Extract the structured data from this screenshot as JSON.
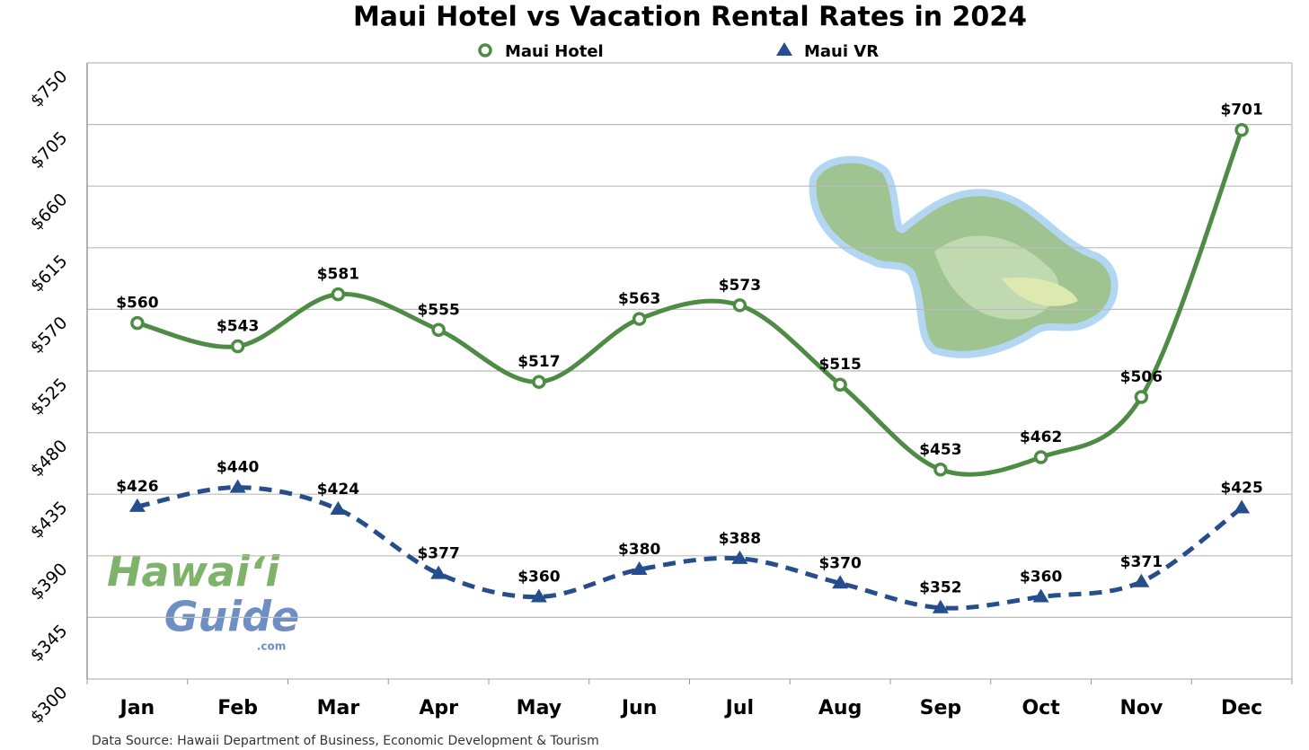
{
  "chart_data": {
    "type": "line",
    "title": "Maui Hotel vs Vacation Rental Rates in 2024",
    "categories": [
      "Jan",
      "Feb",
      "Mar",
      "Apr",
      "May",
      "Jun",
      "Jul",
      "Aug",
      "Sep",
      "Oct",
      "Nov",
      "Dec"
    ],
    "series": [
      {
        "name": "Maui Hotel",
        "color": "#4e8c45",
        "marker": "circle",
        "dashed": false,
        "values": [
          560,
          543,
          581,
          555,
          517,
          563,
          573,
          515,
          453,
          462,
          506,
          701
        ],
        "value_labels": [
          "$560",
          "$543",
          "$581",
          "$555",
          "$517",
          "$563",
          "$573",
          "$515",
          "$453",
          "$462",
          "$506",
          "$701"
        ]
      },
      {
        "name": "Maui VR",
        "color": "#264d8c",
        "marker": "triangle",
        "dashed": true,
        "values": [
          426,
          440,
          424,
          377,
          360,
          380,
          388,
          370,
          352,
          360,
          371,
          425
        ],
        "value_labels": [
          "$426",
          "$440",
          "$424",
          "$377",
          "$360",
          "$380",
          "$388",
          "$370",
          "$352",
          "$360",
          "$371",
          "$425"
        ]
      }
    ],
    "ylim": [
      300,
      750
    ],
    "yticks": [
      {
        "value": 300,
        "label": "$300"
      },
      {
        "value": 345,
        "label": "$345"
      },
      {
        "value": 390,
        "label": "$390"
      },
      {
        "value": 435,
        "label": "$435"
      },
      {
        "value": 480,
        "label": "$480"
      },
      {
        "value": 525,
        "label": "$525"
      },
      {
        "value": 570,
        "label": "$570"
      },
      {
        "value": 615,
        "label": "$615"
      },
      {
        "value": 660,
        "label": "$660"
      },
      {
        "value": 705,
        "label": "$705"
      },
      {
        "value": 750,
        "label": "$750"
      }
    ],
    "grid": true,
    "legend": "top",
    "source": "Data Source: Hawaii Department of Business, Economic Development & Tourism",
    "logo": {
      "line1": "Hawaiʻi",
      "line2": "Guide",
      "suffix": ".com"
    }
  }
}
